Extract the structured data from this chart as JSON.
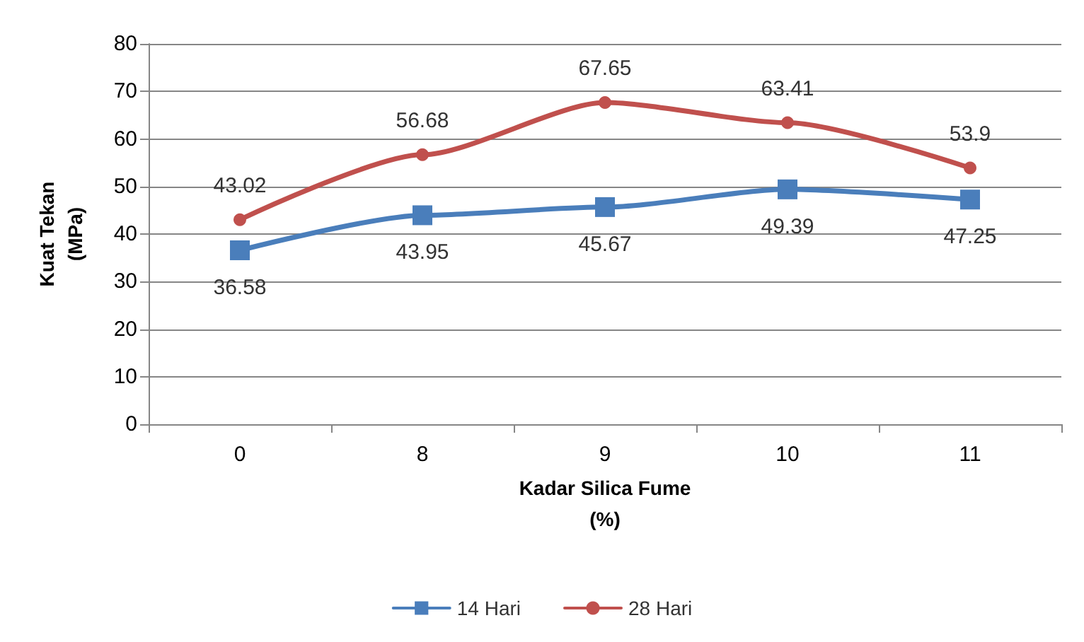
{
  "chart_data": {
    "type": "line",
    "xlabel": "Kadar Silica Fume\n(%)",
    "ylabel": "Kuat Tekan\n(MPa)",
    "categories": [
      "0",
      "8",
      "9",
      "10",
      "11"
    ],
    "series": [
      {
        "name": "14 Hari",
        "color": "#4a7ebb",
        "marker": "square",
        "values": [
          36.58,
          43.95,
          45.67,
          49.39,
          47.25
        ]
      },
      {
        "name": "28 Hari",
        "color": "#c0504d",
        "marker": "circle",
        "values": [
          43.02,
          56.68,
          67.65,
          63.41,
          53.9
        ]
      }
    ],
    "ylim": [
      0,
      80
    ],
    "yticks": [
      0,
      10,
      20,
      30,
      40,
      50,
      60,
      70,
      80
    ],
    "grid": "y",
    "legend": "bottom",
    "data_labels": true
  }
}
